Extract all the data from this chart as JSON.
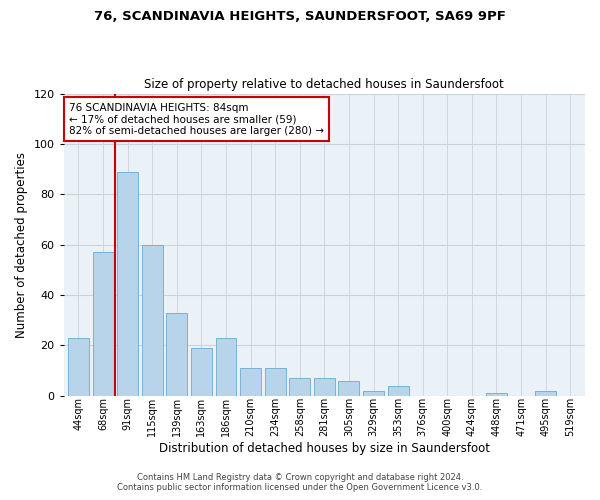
{
  "title": "76, SCANDINAVIA HEIGHTS, SAUNDERSFOOT, SA69 9PF",
  "subtitle": "Size of property relative to detached houses in Saundersfoot",
  "xlabel": "Distribution of detached houses by size in Saundersfoot",
  "ylabel": "Number of detached properties",
  "bar_labels": [
    "44sqm",
    "68sqm",
    "91sqm",
    "115sqm",
    "139sqm",
    "163sqm",
    "186sqm",
    "210sqm",
    "234sqm",
    "258sqm",
    "281sqm",
    "305sqm",
    "329sqm",
    "353sqm",
    "376sqm",
    "400sqm",
    "424sqm",
    "448sqm",
    "471sqm",
    "495sqm",
    "519sqm"
  ],
  "bar_values": [
    23,
    57,
    89,
    60,
    33,
    19,
    23,
    11,
    11,
    7,
    7,
    6,
    2,
    4,
    0,
    0,
    0,
    1,
    0,
    2,
    0
  ],
  "bar_color": "#b8d4ea",
  "bar_edge_color": "#6aaad4",
  "vline_x": 1.5,
  "vline_color": "#cc0000",
  "ylim": [
    0,
    120
  ],
  "yticks": [
    0,
    20,
    40,
    60,
    80,
    100,
    120
  ],
  "annotation_title": "76 SCANDINAVIA HEIGHTS: 84sqm",
  "annotation_line1": "← 17% of detached houses are smaller (59)",
  "annotation_line2": "82% of semi-detached houses are larger (280) →",
  "annotation_box_color": "#ffffff",
  "annotation_box_edge": "#cc0000",
  "footer_line1": "Contains HM Land Registry data © Crown copyright and database right 2024.",
  "footer_line2": "Contains public sector information licensed under the Open Government Licence v3.0.",
  "background_color": "#ffffff",
  "grid_color": "#c8d4de"
}
